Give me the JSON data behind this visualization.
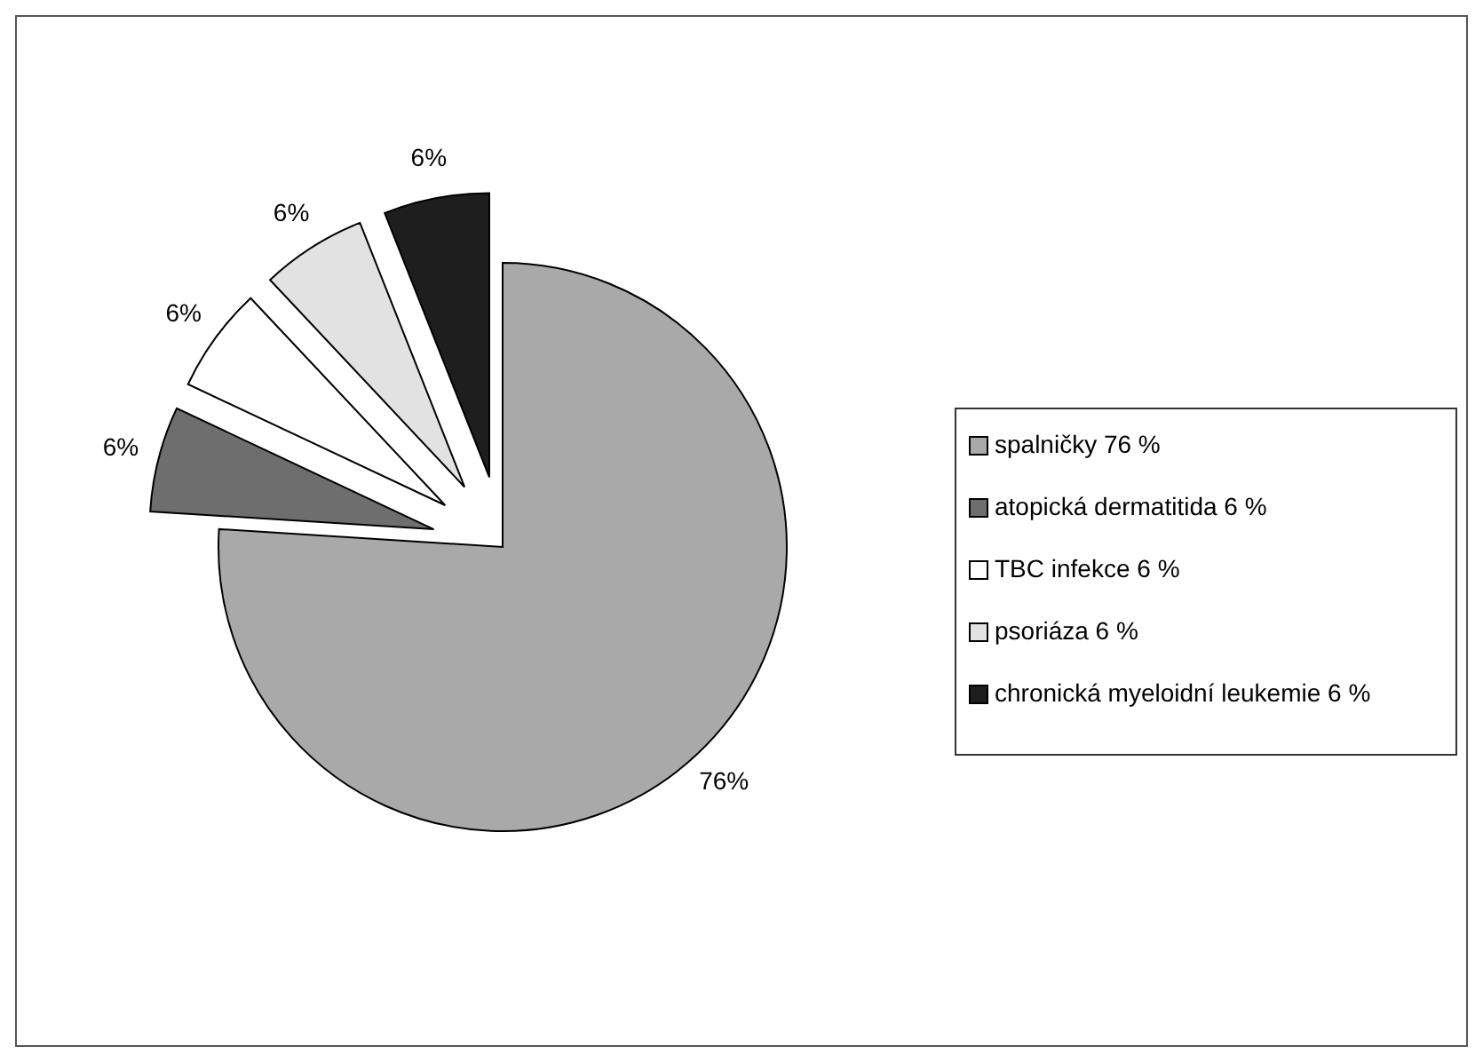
{
  "chart_data": {
    "type": "pie",
    "categories": [
      "spalničky 76 %",
      "atopická dermatitida  6 %",
      "TBC infekce 6 %",
      "psoriáza 6 %",
      "chronická myeloidní leukemie 6 %"
    ],
    "values": [
      76,
      6,
      6,
      6,
      6
    ],
    "colors": [
      "#a9a9a9",
      "#6e6e6e",
      "#ffffff",
      "#e2e2e2",
      "#1e1e1e"
    ],
    "value_labels": [
      "76%",
      "6%",
      "6%",
      "6%",
      "6%"
    ],
    "legend": "right"
  }
}
